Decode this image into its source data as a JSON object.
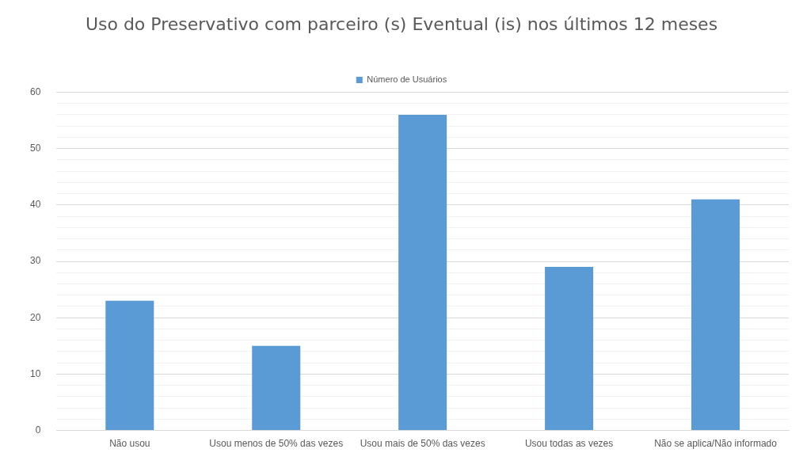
{
  "chart_data": {
    "type": "bar",
    "title": "Uso do Preservativo com parceiro (s) Eventual (is) nos últimos 12 meses",
    "categories": [
      "Não usou",
      "Usou menos de 50% das vezes",
      "Usou mais de 50% das vezes",
      "Usou todas as vezes",
      "Não se aplica/Não informado"
    ],
    "series": [
      {
        "name": "Número de Usuários",
        "color": "#5b9bd5",
        "values": [
          23,
          15,
          56,
          29,
          41
        ]
      }
    ],
    "ylim": [
      0,
      60
    ],
    "yticks": [
      0,
      {
        "value": 2,
        "label": null
      },
      {
        "value": 4,
        "label": null
      },
      {
        "value": 6,
        "label": null
      },
      {
        "value": 8,
        "label": null
      },
      10,
      {
        "value": 12,
        "label": null
      },
      {
        "value": 14,
        "label": null
      },
      {
        "value": 16,
        "label": null
      },
      {
        "value": 18,
        "label": null
      },
      20,
      {
        "value": 22,
        "label": null
      },
      {
        "value": 24,
        "label": null
      },
      {
        "value": 26,
        "label": null
      },
      {
        "value": 28,
        "label": null
      },
      30,
      {
        "value": 32,
        "label": null
      },
      {
        "value": 34,
        "label": null
      },
      {
        "value": 36,
        "label": null
      },
      {
        "value": 38,
        "label": null
      },
      40,
      {
        "value": 42,
        "label": null
      },
      {
        "value": 44,
        "label": null
      },
      {
        "value": 46,
        "label": null
      },
      {
        "value": 48,
        "label": null
      },
      50,
      {
        "value": 52,
        "label": null
      },
      {
        "value": 54,
        "label": null
      },
      {
        "value": 56,
        "label": null
      },
      {
        "value": 58,
        "label": null
      },
      60
    ],
    "grid": "y",
    "legend": "top"
  }
}
